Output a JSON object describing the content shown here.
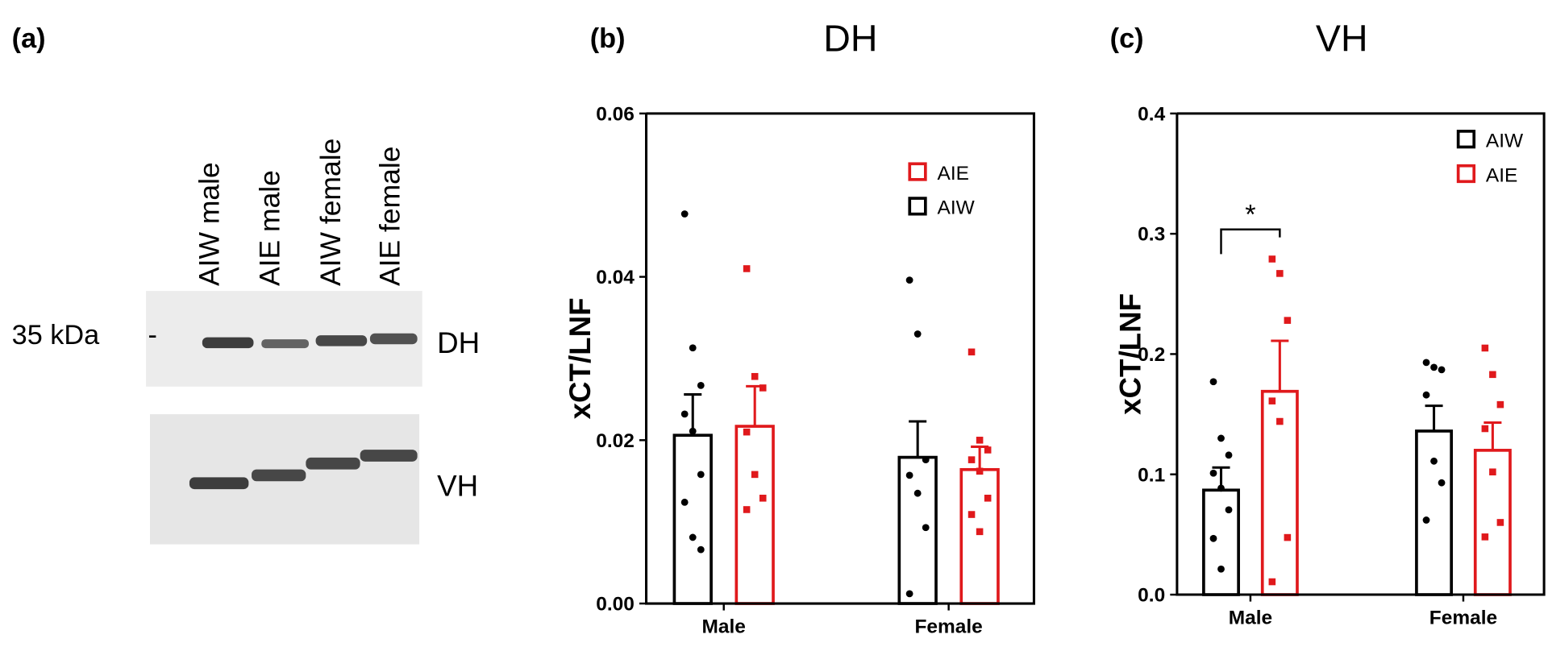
{
  "blot": {
    "panel_label": "(a)",
    "lanes": [
      "AIW male",
      "AIE male",
      "AIW female",
      "AIE female"
    ],
    "marker": "35 kDa",
    "marker_tick": "-",
    "rows": [
      "DH",
      "VH"
    ]
  },
  "chart_data": [
    {
      "type": "bar",
      "panel_label": "(b)",
      "title": "DH",
      "ylabel": "xCT/LNF",
      "categories": [
        "Male",
        "Female"
      ],
      "ylim": [
        0,
        0.06
      ],
      "yticks": [
        {
          "value": 0,
          "label": "0.00"
        },
        {
          "value": 0.02,
          "label": "0.02"
        },
        {
          "value": 0.04,
          "label": "0.04"
        },
        {
          "value": 0.06,
          "label": "0.06"
        }
      ],
      "legend_order": [
        1,
        0
      ],
      "series": [
        {
          "name": "AIW",
          "color": "#000000",
          "marker": "circle",
          "values": [
            0.0206,
            0.0179
          ],
          "errors": [
            0.005,
            0.0044
          ],
          "points": [
            [
              0.0477,
              0.0313,
              0.0267,
              0.0232,
              0.0211,
              0.0158,
              0.0124,
              0.0081,
              0.0066
            ],
            [
              0.0396,
              0.033,
              0.0176,
              0.0157,
              0.0135,
              0.0093,
              0.0012
            ]
          ]
        },
        {
          "name": "AIE",
          "color": "#e0191c",
          "marker": "square",
          "values": [
            0.0217,
            0.0164
          ],
          "errors": [
            0.0049,
            0.0028
          ],
          "points": [
            [
              0.041,
              0.0278,
              0.0264,
              0.021,
              0.0158,
              0.0129,
              0.0115
            ],
            [
              0.0308,
              0.02,
              0.0188,
              0.0176,
              0.0162,
              0.0129,
              0.0109,
              0.0088
            ]
          ]
        }
      ],
      "annotations": []
    },
    {
      "type": "bar",
      "panel_label": "(c)",
      "title": "VH",
      "ylabel": "xCT/LNF",
      "categories": [
        "Male",
        "Female"
      ],
      "ylim": [
        0,
        0.4
      ],
      "yticks": [
        {
          "value": 0,
          "label": "0.0"
        },
        0.1,
        0.2,
        0.3,
        0.4
      ],
      "legend_order": [
        0,
        1
      ],
      "series": [
        {
          "name": "AIW",
          "color": "#000000",
          "marker": "circle",
          "values": [
            0.0869,
            0.136
          ],
          "errors": [
            0.0188,
            0.021
          ],
          "points": [
            [
              0.177,
              0.13,
              0.116,
              0.101,
              0.0885,
              0.0705,
              0.0467,
              0.0213
            ],
            [
              0.193,
              0.189,
              0.187,
              0.166,
              0.111,
              0.093,
              0.062
            ]
          ]
        },
        {
          "name": "AIE",
          "color": "#e0191c",
          "marker": "square",
          "values": [
            0.169,
            0.12
          ],
          "errors": [
            0.042,
            0.023
          ],
          "points": [
            [
              0.279,
              0.267,
              0.228,
              0.161,
              0.144,
              0.0475,
              0.0107
            ],
            [
              0.205,
              0.183,
              0.158,
              0.138,
              0.102,
              0.06,
              0.048
            ]
          ]
        }
      ],
      "annotations": [
        {
          "text": "*",
          "category": 0
        }
      ]
    }
  ]
}
